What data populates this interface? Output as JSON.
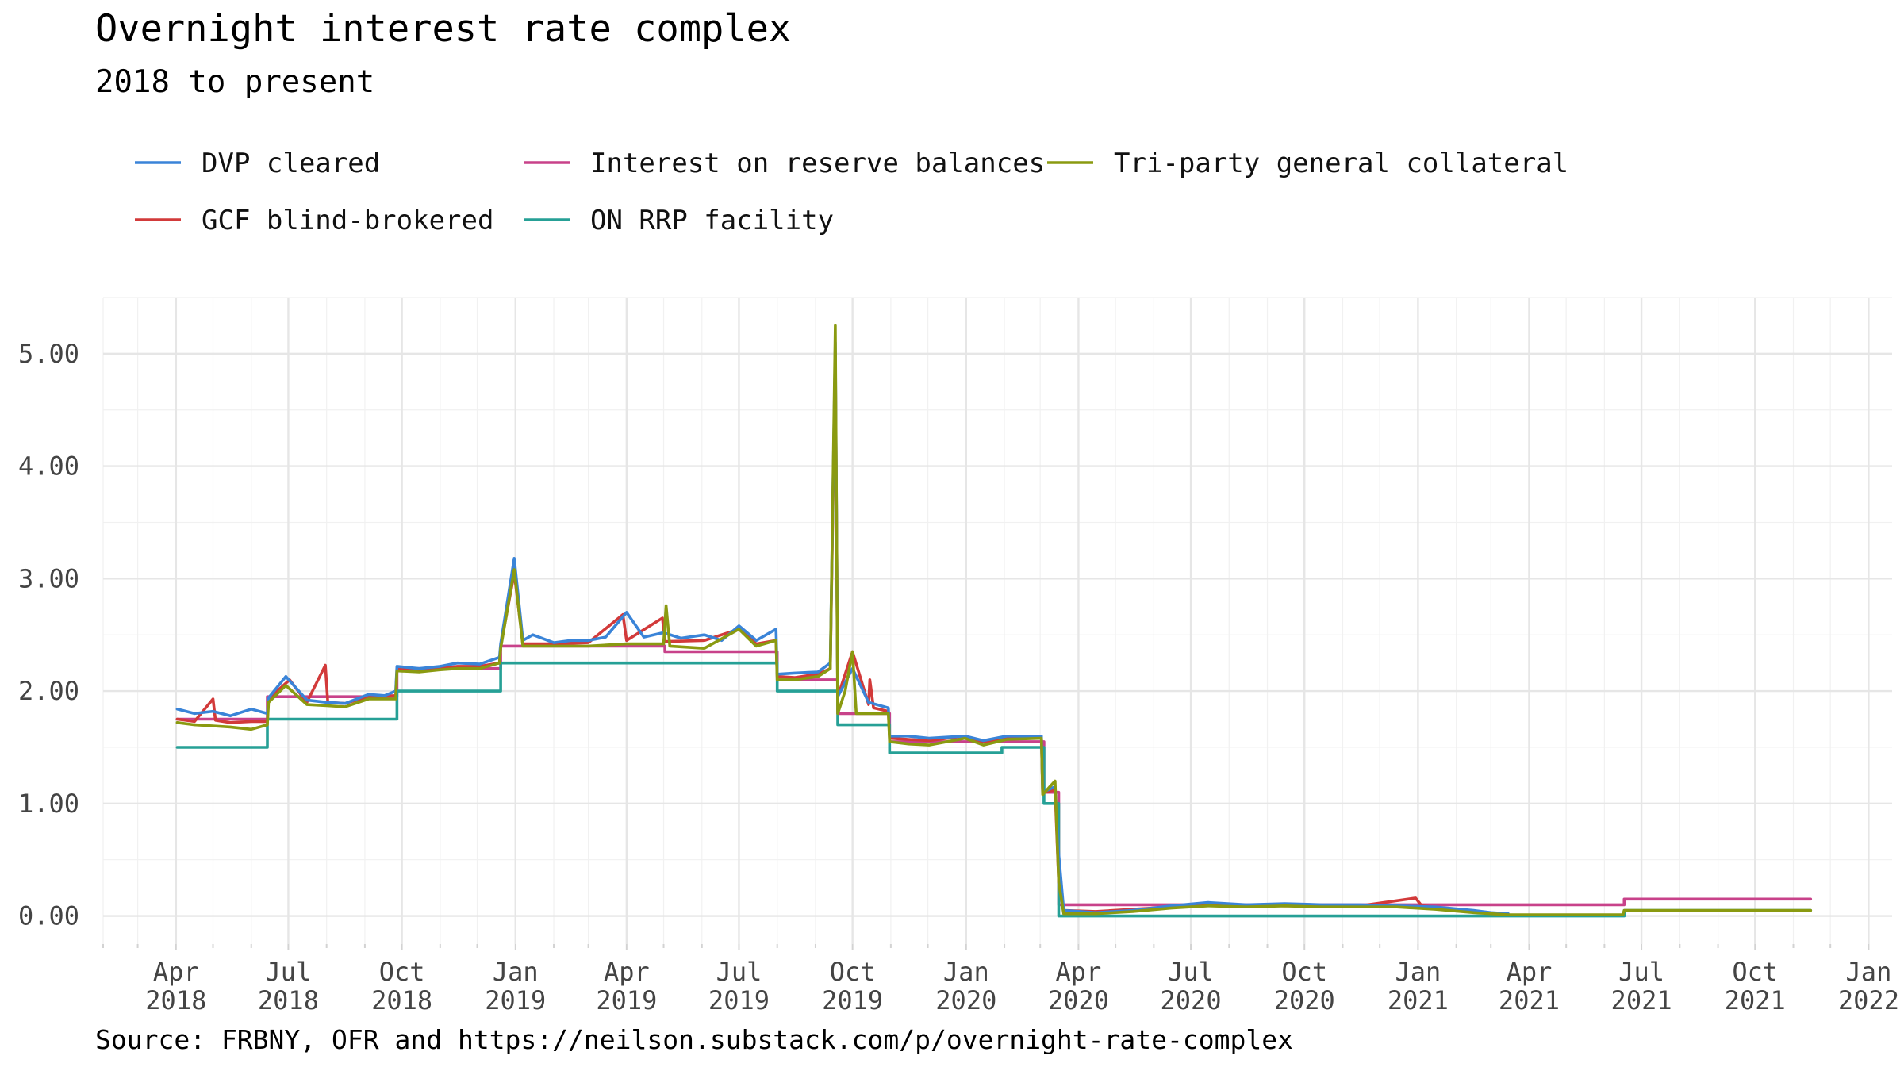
{
  "chart_data": {
    "type": "line",
    "title": "Overnight interest rate complex",
    "subtitle": "2018 to present",
    "caption": "Source: FRBNY, OFR and https://neilson.substack.com/p/overnight-rate-complex",
    "xlabel": "",
    "ylabel": "",
    "xlim": [
      "2018-02-01",
      "2022-01-20"
    ],
    "ylim": [
      -0.25,
      5.5
    ],
    "y_ticks": [
      0,
      1,
      2,
      3,
      4,
      5
    ],
    "y_tick_labels": [
      "0.00",
      "1.00",
      "2.00",
      "3.00",
      "4.00",
      "5.00"
    ],
    "x_ticks": [
      "2018-04-01",
      "2018-07-01",
      "2018-10-01",
      "2019-01-01",
      "2019-04-01",
      "2019-07-01",
      "2019-10-01",
      "2020-01-01",
      "2020-04-01",
      "2020-07-01",
      "2020-10-01",
      "2021-01-01",
      "2021-04-01",
      "2021-07-01",
      "2021-10-01",
      "2022-01-01"
    ],
    "x_tick_labels": [
      [
        "Apr",
        "2018"
      ],
      [
        "Jul",
        "2018"
      ],
      [
        "Oct",
        "2018"
      ],
      [
        "Jan",
        "2019"
      ],
      [
        "Apr",
        "2019"
      ],
      [
        "Jul",
        "2019"
      ],
      [
        "Oct",
        "2019"
      ],
      [
        "Jan",
        "2020"
      ],
      [
        "Apr",
        "2020"
      ],
      [
        "Jul",
        "2020"
      ],
      [
        "Oct",
        "2020"
      ],
      [
        "Jan",
        "2021"
      ],
      [
        "Apr",
        "2021"
      ],
      [
        "Jul",
        "2021"
      ],
      [
        "Oct",
        "2021"
      ],
      [
        "Jan",
        "2022"
      ]
    ],
    "grid": true,
    "legend_position": "top-left",
    "series": [
      {
        "name": "DVP cleared",
        "color": "#3a84d8",
        "points": [
          [
            "2018-04-02",
            1.84
          ],
          [
            "2018-04-16",
            1.8
          ],
          [
            "2018-05-01",
            1.82
          ],
          [
            "2018-05-15",
            1.78
          ],
          [
            "2018-06-01",
            1.84
          ],
          [
            "2018-06-14",
            1.8
          ],
          [
            "2018-06-15",
            1.94
          ],
          [
            "2018-06-29",
            2.13
          ],
          [
            "2018-07-16",
            1.92
          ],
          [
            "2018-08-01",
            1.9
          ],
          [
            "2018-08-16",
            1.89
          ],
          [
            "2018-09-04",
            1.97
          ],
          [
            "2018-09-17",
            1.96
          ],
          [
            "2018-09-26",
            2.0
          ],
          [
            "2018-09-27",
            2.22
          ],
          [
            "2018-10-15",
            2.2
          ],
          [
            "2018-11-01",
            2.22
          ],
          [
            "2018-11-15",
            2.25
          ],
          [
            "2018-12-03",
            2.24
          ],
          [
            "2018-12-19",
            2.3
          ],
          [
            "2018-12-20",
            2.42
          ],
          [
            "2018-12-31",
            3.18
          ],
          [
            "2019-01-07",
            2.45
          ],
          [
            "2019-01-15",
            2.5
          ],
          [
            "2019-02-01",
            2.43
          ],
          [
            "2019-02-15",
            2.45
          ],
          [
            "2019-03-01",
            2.45
          ],
          [
            "2019-03-15",
            2.48
          ],
          [
            "2019-04-01",
            2.7
          ],
          [
            "2019-04-15",
            2.48
          ],
          [
            "2019-05-01",
            2.52
          ],
          [
            "2019-05-15",
            2.47
          ],
          [
            "2019-06-03",
            2.5
          ],
          [
            "2019-06-17",
            2.45
          ],
          [
            "2019-07-01",
            2.58
          ],
          [
            "2019-07-15",
            2.45
          ],
          [
            "2019-07-31",
            2.55
          ],
          [
            "2019-08-01",
            2.15
          ],
          [
            "2019-08-15",
            2.16
          ],
          [
            "2019-09-03",
            2.17
          ],
          [
            "2019-09-13",
            2.25
          ],
          [
            "2019-09-17",
            5.1
          ],
          [
            "2019-09-19",
            1.95
          ],
          [
            "2019-10-01",
            2.2
          ],
          [
            "2019-10-14",
            1.9
          ],
          [
            "2019-10-30",
            1.85
          ],
          [
            "2019-10-31",
            1.6
          ],
          [
            "2019-11-15",
            1.6
          ],
          [
            "2019-12-02",
            1.58
          ],
          [
            "2019-12-31",
            1.6
          ],
          [
            "2020-01-15",
            1.56
          ],
          [
            "2020-02-03",
            1.6
          ],
          [
            "2020-03-02",
            1.6
          ],
          [
            "2020-03-03",
            1.1
          ],
          [
            "2020-03-13",
            1.15
          ],
          [
            "2020-03-16",
            0.55
          ],
          [
            "2020-03-20",
            0.05
          ],
          [
            "2020-04-15",
            0.03
          ],
          [
            "2020-05-15",
            0.05
          ],
          [
            "2020-06-15",
            0.09
          ],
          [
            "2020-07-15",
            0.12
          ],
          [
            "2020-08-15",
            0.1
          ],
          [
            "2020-09-15",
            0.11
          ],
          [
            "2020-10-15",
            0.1
          ],
          [
            "2020-11-15",
            0.1
          ],
          [
            "2020-12-15",
            0.09
          ],
          [
            "2021-01-15",
            0.08
          ],
          [
            "2021-02-15",
            0.05
          ],
          [
            "2021-03-01",
            0.03
          ],
          [
            "2021-03-15",
            0.02
          ]
        ]
      },
      {
        "name": "GCF blind-brokered",
        "color": "#d23a3a",
        "points": [
          [
            "2018-04-02",
            1.75
          ],
          [
            "2018-04-16",
            1.73
          ],
          [
            "2018-05-01",
            1.93
          ],
          [
            "2018-05-03",
            1.74
          ],
          [
            "2018-05-15",
            1.72
          ],
          [
            "2018-06-01",
            1.73
          ],
          [
            "2018-06-14",
            1.73
          ],
          [
            "2018-06-15",
            1.93
          ],
          [
            "2018-07-02",
            2.1
          ],
          [
            "2018-07-16",
            1.9
          ],
          [
            "2018-07-31",
            2.23
          ],
          [
            "2018-08-02",
            1.9
          ],
          [
            "2018-08-16",
            1.89
          ],
          [
            "2018-09-04",
            1.95
          ],
          [
            "2018-09-26",
            1.96
          ],
          [
            "2018-09-27",
            2.2
          ],
          [
            "2018-10-15",
            2.18
          ],
          [
            "2018-11-01",
            2.2
          ],
          [
            "2018-11-15",
            2.22
          ],
          [
            "2018-12-03",
            2.22
          ],
          [
            "2018-12-19",
            2.25
          ],
          [
            "2018-12-20",
            2.4
          ],
          [
            "2018-12-31",
            3.05
          ],
          [
            "2019-01-07",
            2.42
          ],
          [
            "2019-02-01",
            2.42
          ],
          [
            "2019-03-01",
            2.43
          ],
          [
            "2019-03-29",
            2.68
          ],
          [
            "2019-04-01",
            2.45
          ],
          [
            "2019-04-30",
            2.65
          ],
          [
            "2019-05-02",
            2.44
          ],
          [
            "2019-06-03",
            2.45
          ],
          [
            "2019-07-01",
            2.55
          ],
          [
            "2019-07-15",
            2.42
          ],
          [
            "2019-07-31",
            2.45
          ],
          [
            "2019-08-01",
            2.13
          ],
          [
            "2019-08-15",
            2.12
          ],
          [
            "2019-09-03",
            2.15
          ],
          [
            "2019-09-13",
            2.2
          ],
          [
            "2019-09-17",
            5.0
          ],
          [
            "2019-09-19",
            1.95
          ],
          [
            "2019-10-01",
            2.35
          ],
          [
            "2019-10-14",
            1.88
          ],
          [
            "2019-10-15",
            2.1
          ],
          [
            "2019-10-18",
            1.85
          ],
          [
            "2019-10-30",
            1.82
          ],
          [
            "2019-10-31",
            1.58
          ],
          [
            "2019-11-15",
            1.57
          ],
          [
            "2019-12-02",
            1.56
          ],
          [
            "2019-12-31",
            1.6
          ],
          [
            "2020-01-15",
            1.55
          ],
          [
            "2020-02-03",
            1.58
          ],
          [
            "2020-03-02",
            1.58
          ],
          [
            "2020-03-03",
            1.1
          ],
          [
            "2020-03-13",
            1.12
          ],
          [
            "2020-03-16",
            0.3
          ],
          [
            "2020-03-20",
            0.05
          ],
          [
            "2020-04-15",
            0.04
          ],
          [
            "2020-06-15",
            0.08
          ],
          [
            "2020-07-15",
            0.1
          ],
          [
            "2020-09-15",
            0.09
          ],
          [
            "2020-11-15",
            0.09
          ],
          [
            "2020-12-30",
            0.16
          ],
          [
            "2021-01-04",
            0.09
          ],
          [
            "2021-02-15",
            0.04
          ]
        ]
      },
      {
        "name": "Interest on reserve balances",
        "color": "#c8428a",
        "points": [
          [
            "2018-04-02",
            1.75
          ],
          [
            "2018-06-14",
            1.75
          ],
          [
            "2018-06-14",
            1.95
          ],
          [
            "2018-09-27",
            1.95
          ],
          [
            "2018-09-27",
            2.2
          ],
          [
            "2018-12-20",
            2.2
          ],
          [
            "2018-12-20",
            2.4
          ],
          [
            "2019-05-02",
            2.4
          ],
          [
            "2019-05-02",
            2.35
          ],
          [
            "2019-08-01",
            2.35
          ],
          [
            "2019-08-01",
            2.1
          ],
          [
            "2019-09-19",
            2.1
          ],
          [
            "2019-09-19",
            1.8
          ],
          [
            "2019-10-31",
            1.8
          ],
          [
            "2019-10-31",
            1.55
          ],
          [
            "2020-03-04",
            1.55
          ],
          [
            "2020-03-04",
            1.1
          ],
          [
            "2020-03-16",
            1.1
          ],
          [
            "2020-03-16",
            0.1
          ],
          [
            "2021-06-17",
            0.1
          ],
          [
            "2021-06-17",
            0.15
          ],
          [
            "2021-11-15",
            0.15
          ]
        ]
      },
      {
        "name": "ON RRP facility",
        "color": "#26a096",
        "points": [
          [
            "2018-04-02",
            1.5
          ],
          [
            "2018-06-14",
            1.5
          ],
          [
            "2018-06-14",
            1.75
          ],
          [
            "2018-09-27",
            1.75
          ],
          [
            "2018-09-27",
            2.0
          ],
          [
            "2018-12-20",
            2.0
          ],
          [
            "2018-12-20",
            2.25
          ],
          [
            "2019-08-01",
            2.25
          ],
          [
            "2019-08-01",
            2.0
          ],
          [
            "2019-09-19",
            2.0
          ],
          [
            "2019-09-19",
            1.7
          ],
          [
            "2019-10-31",
            1.7
          ],
          [
            "2019-10-31",
            1.45
          ],
          [
            "2020-01-30",
            1.45
          ],
          [
            "2020-01-30",
            1.5
          ],
          [
            "2020-03-04",
            1.5
          ],
          [
            "2020-03-04",
            1.0
          ],
          [
            "2020-03-16",
            1.0
          ],
          [
            "2020-03-16",
            0.0
          ],
          [
            "2021-06-17",
            0.0
          ],
          [
            "2021-06-17",
            0.05
          ],
          [
            "2021-11-15",
            0.05
          ]
        ]
      },
      {
        "name": "Tri-party general collateral",
        "color": "#8a9a10",
        "points": [
          [
            "2018-04-02",
            1.72
          ],
          [
            "2018-04-16",
            1.7
          ],
          [
            "2018-05-01",
            1.69
          ],
          [
            "2018-05-15",
            1.68
          ],
          [
            "2018-06-01",
            1.66
          ],
          [
            "2018-06-14",
            1.7
          ],
          [
            "2018-06-15",
            1.9
          ],
          [
            "2018-06-29",
            2.05
          ],
          [
            "2018-07-16",
            1.88
          ],
          [
            "2018-08-01",
            1.87
          ],
          [
            "2018-08-16",
            1.86
          ],
          [
            "2018-09-04",
            1.93
          ],
          [
            "2018-09-26",
            1.93
          ],
          [
            "2018-09-27",
            2.18
          ],
          [
            "2018-10-15",
            2.17
          ],
          [
            "2018-11-01",
            2.19
          ],
          [
            "2018-11-15",
            2.2
          ],
          [
            "2018-12-03",
            2.2
          ],
          [
            "2018-12-19",
            2.25
          ],
          [
            "2018-12-20",
            2.38
          ],
          [
            "2018-12-31",
            3.08
          ],
          [
            "2019-01-07",
            2.4
          ],
          [
            "2019-02-01",
            2.4
          ],
          [
            "2019-03-01",
            2.4
          ],
          [
            "2019-04-01",
            2.42
          ],
          [
            "2019-05-01",
            2.42
          ],
          [
            "2019-05-03",
            2.76
          ],
          [
            "2019-05-06",
            2.4
          ],
          [
            "2019-06-03",
            2.38
          ],
          [
            "2019-07-01",
            2.55
          ],
          [
            "2019-07-15",
            2.4
          ],
          [
            "2019-07-31",
            2.45
          ],
          [
            "2019-08-01",
            2.1
          ],
          [
            "2019-08-15",
            2.1
          ],
          [
            "2019-09-03",
            2.13
          ],
          [
            "2019-09-13",
            2.2
          ],
          [
            "2019-09-17",
            5.25
          ],
          [
            "2019-09-19",
            1.8
          ],
          [
            "2019-09-25",
            2.0
          ],
          [
            "2019-10-01",
            2.35
          ],
          [
            "2019-10-04",
            1.8
          ],
          [
            "2019-10-14",
            1.8
          ],
          [
            "2019-10-30",
            1.8
          ],
          [
            "2019-10-31",
            1.55
          ],
          [
            "2019-11-15",
            1.53
          ],
          [
            "2019-12-02",
            1.52
          ],
          [
            "2019-12-31",
            1.58
          ],
          [
            "2020-01-15",
            1.52
          ],
          [
            "2020-02-03",
            1.57
          ],
          [
            "2020-03-02",
            1.58
          ],
          [
            "2020-03-03",
            1.08
          ],
          [
            "2020-03-13",
            1.2
          ],
          [
            "2020-03-16",
            0.3
          ],
          [
            "2020-03-20",
            0.02
          ],
          [
            "2020-04-15",
            0.02
          ],
          [
            "2020-05-15",
            0.04
          ],
          [
            "2020-06-15",
            0.07
          ],
          [
            "2020-07-15",
            0.09
          ],
          [
            "2020-08-15",
            0.08
          ],
          [
            "2020-09-15",
            0.09
          ],
          [
            "2020-10-15",
            0.08
          ],
          [
            "2020-11-15",
            0.08
          ],
          [
            "2020-12-15",
            0.08
          ],
          [
            "2021-01-15",
            0.06
          ],
          [
            "2021-02-15",
            0.03
          ],
          [
            "2021-03-15",
            0.01
          ],
          [
            "2021-04-15",
            0.01
          ],
          [
            "2021-06-16",
            0.01
          ],
          [
            "2021-06-17",
            0.05
          ],
          [
            "2021-11-15",
            0.05
          ]
        ]
      }
    ]
  }
}
